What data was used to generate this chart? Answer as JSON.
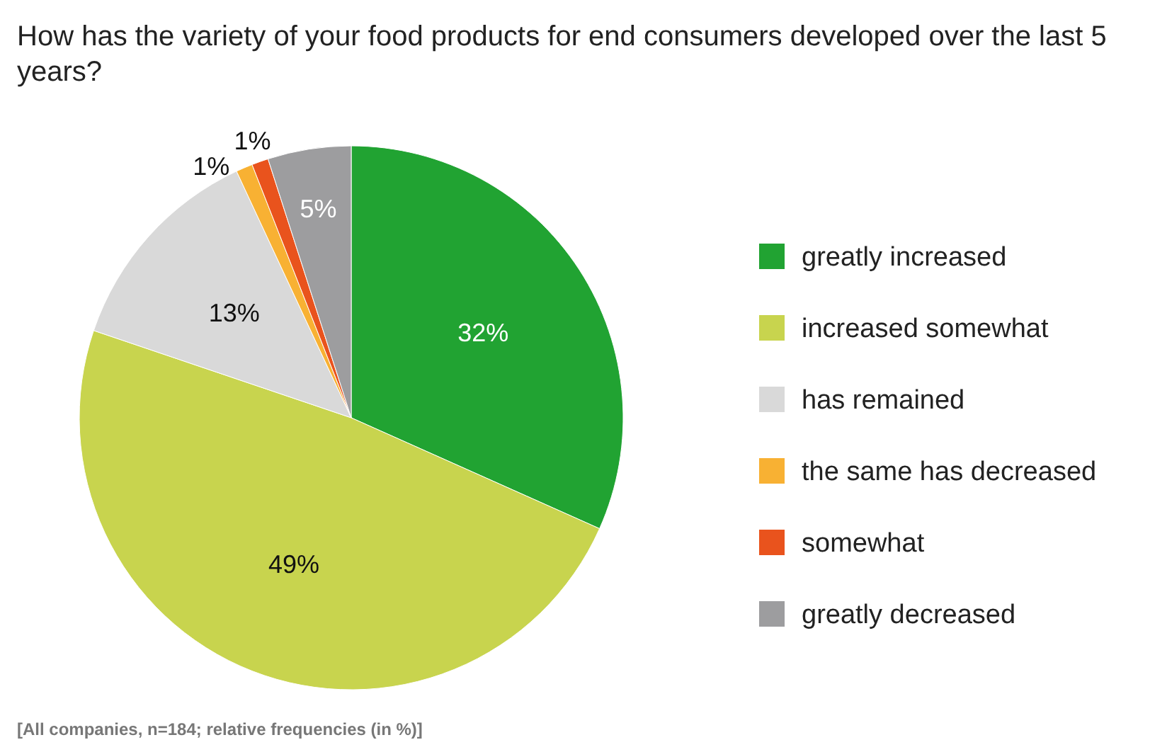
{
  "chart_data": {
    "type": "pie",
    "title": "How has the variety of your food products for end consumers developed over the last 5 years?",
    "categories": [
      "greatly increased",
      "increased somewhat",
      "has remained",
      "the same has decreased",
      "somewhat",
      "greatly decreased"
    ],
    "values": [
      32,
      49,
      13,
      1,
      1,
      5
    ],
    "colors": [
      "#21a332",
      "#c8d44e",
      "#d9d9d9",
      "#f8b133",
      "#e9531d",
      "#9d9d9f"
    ],
    "value_labels": [
      "32%",
      "49%",
      "13%",
      "1%",
      "1%",
      "5%"
    ],
    "legend": "right",
    "annotations": [
      "[All companies, n=184; relative frequencies (in %)]"
    ]
  }
}
